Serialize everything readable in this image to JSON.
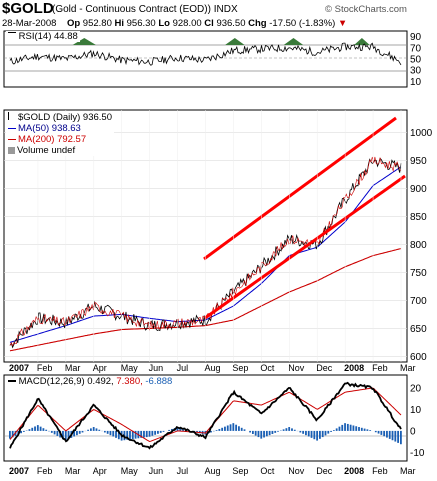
{
  "header": {
    "symbol": "$GOLD",
    "description": "(Gold - Continuous Contract (EOD))",
    "exchange": "INDX",
    "watermark": "© StockCharts.com",
    "date": "28-Mar-2008",
    "op_label": "Op",
    "op": "952.80",
    "hi_label": "Hi",
    "hi": "956.30",
    "lo_label": "Lo",
    "lo": "928.00",
    "cl_label": "Cl",
    "cl": "936.50",
    "chg_label": "Chg",
    "chg": "-17.50 (-1.83%)",
    "chg_arrow": "▼"
  },
  "rsi_panel": {
    "label": "RSI(14) 44.88",
    "ticks": [
      "90",
      "70",
      "50",
      "30",
      "10"
    ]
  },
  "price_panel": {
    "legend_main": "$GOLD (Daily) 936.50",
    "legend_ma50": "MA(50) 938.63",
    "legend_ma200": "MA(200) 792.57",
    "legend_volume": "Volume undef",
    "ticks": [
      "1000",
      "950",
      "900",
      "850",
      "800",
      "750",
      "700",
      "650",
      "600"
    ]
  },
  "macd_panel": {
    "label_main": "MACD(12,26,9) 0.492,",
    "label_signal": "7.380,",
    "label_hist": "-6.888",
    "ticks": [
      "20",
      "10",
      "0",
      "-10"
    ]
  },
  "x_axis": {
    "labels": [
      "2007",
      "Feb",
      "Mar",
      "Apr",
      "May",
      "Jun",
      "Jul",
      "Aug",
      "Sep",
      "Oct",
      "Nov",
      "Dec",
      "2008",
      "Feb",
      "Mar"
    ]
  },
  "colors": {
    "price": "#000000",
    "ma50": "#0000cc",
    "ma200": "#cc0000",
    "channel": "#ff0000",
    "rsi_fill": "#3a7a3a",
    "macd_hist": "#1a5fb4",
    "macd_signal": "#cc0000",
    "panel_bg": "#ffffff",
    "border": "#000000"
  },
  "chart_data": [
    {
      "type": "line",
      "name": "price",
      "x": [
        "2007-01",
        "2007-02",
        "2007-03",
        "2007-04",
        "2007-05",
        "2007-06",
        "2007-07",
        "2007-08",
        "2007-09",
        "2007-10",
        "2007-11",
        "2007-12",
        "2008-01",
        "2008-02",
        "2008-03"
      ],
      "series": [
        {
          "name": "$GOLD",
          "values": [
            620,
            668,
            660,
            690,
            672,
            655,
            660,
            665,
            715,
            760,
            810,
            800,
            880,
            950,
            936.5
          ]
        },
        {
          "name": "MA(50)",
          "values": [
            625,
            640,
            655,
            672,
            675,
            668,
            662,
            665,
            690,
            730,
            780,
            795,
            840,
            905,
            938.63
          ]
        },
        {
          "name": "MA(200)",
          "values": [
            610,
            620,
            630,
            640,
            648,
            650,
            652,
            655,
            665,
            690,
            715,
            735,
            760,
            780,
            792.57
          ]
        }
      ],
      "ylim": [
        590,
        1040
      ]
    },
    {
      "type": "line",
      "name": "rsi",
      "x": [
        "2007-01",
        "2007-02",
        "2007-03",
        "2007-04",
        "2007-05",
        "2007-06",
        "2007-07",
        "2007-08",
        "2007-09",
        "2007-10",
        "2007-11",
        "2007-12",
        "2008-01",
        "2008-02",
        "2008-03"
      ],
      "series": [
        {
          "name": "RSI(14)",
          "values": [
            45,
            55,
            50,
            60,
            48,
            45,
            52,
            48,
            65,
            68,
            70,
            62,
            72,
            72,
            44.88
          ]
        }
      ],
      "ylim": [
        0,
        100
      ]
    },
    {
      "type": "line",
      "name": "macd",
      "x": [
        "2007-01",
        "2007-02",
        "2007-03",
        "2007-04",
        "2007-05",
        "2007-06",
        "2007-07",
        "2007-08",
        "2007-09",
        "2007-10",
        "2007-11",
        "2007-12",
        "2008-01",
        "2008-02",
        "2008-03"
      ],
      "series": [
        {
          "name": "MACD",
          "values": [
            -8,
            15,
            -5,
            12,
            -2,
            -8,
            2,
            -3,
            18,
            8,
            20,
            5,
            22,
            20,
            0.492
          ]
        },
        {
          "name": "Signal",
          "values": [
            -4,
            12,
            0,
            10,
            3,
            -5,
            0,
            -1,
            14,
            12,
            18,
            10,
            18,
            20,
            7.38
          ]
        }
      ],
      "ylim": [
        -14,
        26
      ]
    }
  ]
}
